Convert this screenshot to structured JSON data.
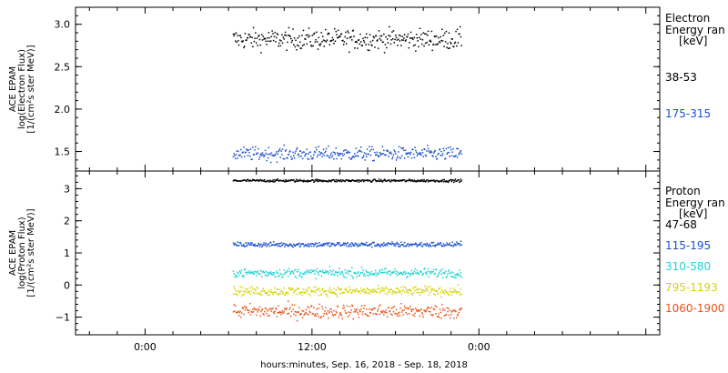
{
  "x_axis": {
    "label": "hours:minutes, Sep. 16, 2018 - Sep. 18, 2018",
    "range_hours": [
      -5,
      37
    ],
    "ticks": [
      {
        "hour": 0,
        "label": "0:00"
      },
      {
        "hour": 12,
        "label": "12:00"
      },
      {
        "hour": 24,
        "label": "0:00"
      }
    ],
    "data_span_hours": [
      6.3,
      22.7
    ]
  },
  "chart_data": [
    {
      "type": "scatter",
      "panel": "electron",
      "ylabel": [
        "ACE EPAM",
        "log(Electron Flux)",
        "[1/(cm²s ster MeV)]"
      ],
      "ylim": [
        1.27,
        3.2
      ],
      "yticks": [
        {
          "value": 1.5,
          "label": "1.5"
        },
        {
          "value": 2.0,
          "label": "2.0"
        },
        {
          "value": 2.5,
          "label": "2.5"
        },
        {
          "value": 3.0,
          "label": "3.0"
        }
      ],
      "legend_title": [
        "Electron",
        "Energy ran",
        "[keV]"
      ],
      "series": [
        {
          "name": "38-53",
          "color": "#000000",
          "mean": 2.83,
          "spread": 0.06
        },
        {
          "name": "175-315",
          "color": "#1a4fcf",
          "mean": 1.48,
          "spread": 0.04
        }
      ]
    },
    {
      "type": "scatter",
      "panel": "proton",
      "ylabel": [
        "ACE EPAM",
        "log(Proton Flux)",
        "[1/(cm²s ster MeV)]"
      ],
      "ylim": [
        -1.55,
        3.55
      ],
      "yticks": [
        {
          "value": -1,
          "label": "−1"
        },
        {
          "value": 0,
          "label": "0"
        },
        {
          "value": 1,
          "label": "1"
        },
        {
          "value": 2,
          "label": "2"
        },
        {
          "value": 3,
          "label": "3"
        }
      ],
      "legend_title": [
        "Proton",
        "Energy ran",
        "[keV]"
      ],
      "series": [
        {
          "name": "47-68",
          "color": "#000000",
          "mean": 3.27,
          "spread": 0.02
        },
        {
          "name": "115-195",
          "color": "#1a4fcf",
          "mean": 1.28,
          "spread": 0.04
        },
        {
          "name": "310-580",
          "color": "#22d3d3",
          "mean": 0.4,
          "spread": 0.07
        },
        {
          "name": "795-1193",
          "color": "#d4d400",
          "mean": -0.17,
          "spread": 0.07
        },
        {
          "name": "1060-1900",
          "color": "#e8541a",
          "mean": -0.8,
          "spread": 0.11
        }
      ]
    }
  ]
}
